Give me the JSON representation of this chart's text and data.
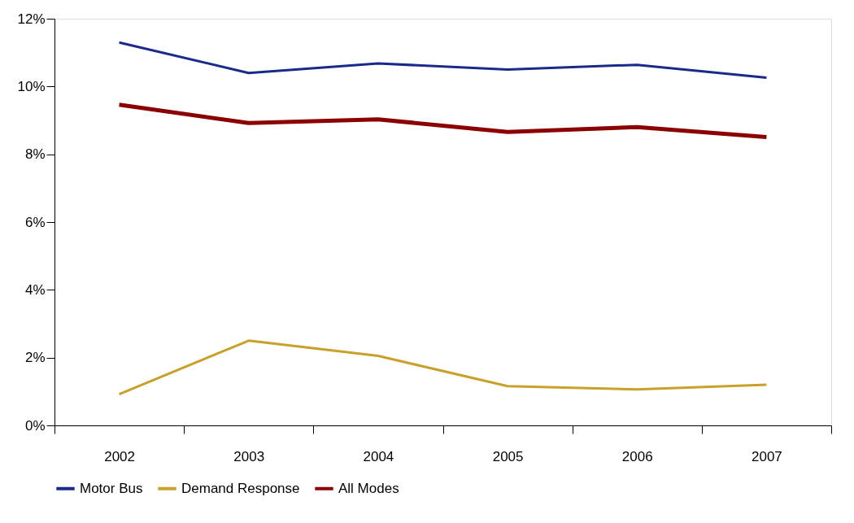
{
  "chart_data": {
    "type": "line",
    "categories": [
      "2002",
      "2003",
      "2004",
      "2005",
      "2006",
      "2007"
    ],
    "series": [
      {
        "name": "Motor Bus",
        "color": "#1a2a8a",
        "values": [
          11.3,
          10.4,
          10.68,
          10.5,
          10.64,
          10.26
        ]
      },
      {
        "name": "Demand Response",
        "color": "#c9a02a",
        "values": [
          0.92,
          2.5,
          2.05,
          1.16,
          1.06,
          1.2
        ]
      },
      {
        "name": "All Modes",
        "color": "#8b0000",
        "values": [
          9.46,
          8.92,
          9.03,
          8.66,
          8.8,
          8.51
        ]
      }
    ],
    "ylim": [
      0,
      12
    ],
    "yticks": [
      {
        "value": 0,
        "label": "0%"
      },
      {
        "value": 2,
        "label": "2%"
      },
      {
        "value": 4,
        "label": "4%"
      },
      {
        "value": 6,
        "label": "6%"
      },
      {
        "value": 8,
        "label": "8%"
      },
      {
        "value": 10,
        "label": "10%"
      },
      {
        "value": 12,
        "label": "12%"
      }
    ],
    "grid": false,
    "legend": "bottom",
    "marker": "none",
    "line_style": "solid"
  }
}
